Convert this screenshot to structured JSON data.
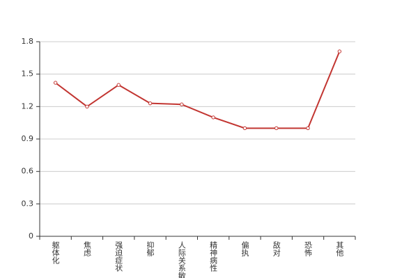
{
  "chart_data": {
    "type": "line",
    "categories": [
      "躯体化",
      "焦虑",
      "强迫症状",
      "抑郁",
      "人际关系敏感",
      "精神病性",
      "偏执",
      "敌对",
      "恐怖",
      "其他"
    ],
    "series": [
      {
        "color": "#c23531",
        "values": [
          1.42,
          1.2,
          1.4,
          1.23,
          1.22,
          1.1,
          1.0,
          1.0,
          1.0,
          1.71
        ]
      }
    ],
    "ylim": [
      0,
      1.8
    ],
    "yticks": [
      0,
      0.3,
      0.6,
      0.9,
      1.2,
      1.5,
      1.8
    ],
    "grid": true
  }
}
